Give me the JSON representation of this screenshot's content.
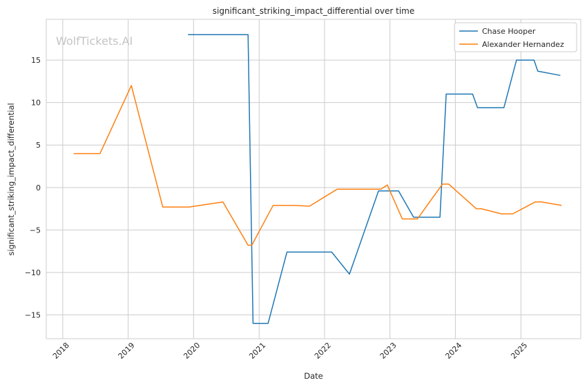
{
  "chart_data": {
    "type": "line",
    "title": "significant_striking_impact_differential over time",
    "xlabel": "Date",
    "ylabel": "significant_striking_impact_differential",
    "watermark": "WolfTickets.AI",
    "xlim": [
      "2017-10-01",
      "2025-12-01"
    ],
    "ylim": [
      -17.8,
      19.8
    ],
    "x_ticks": [
      "2018",
      "2019",
      "2020",
      "2021",
      "2022",
      "2023",
      "2024",
      "2025"
    ],
    "y_ticks": [
      15,
      10,
      5,
      0,
      -5,
      -10,
      -15
    ],
    "y_tick_labels": [
      "15",
      "10",
      "5",
      "0",
      "−5",
      "−10",
      "−15"
    ],
    "grid": true,
    "legend_position": "top-right",
    "series": [
      {
        "name": "Chase Hooper",
        "color": "#1f77b4",
        "points": [
          [
            "2019-12-01",
            18.0
          ],
          [
            "2020-10-31",
            18.0
          ],
          [
            "2020-11-28",
            -16.0
          ],
          [
            "2021-02-20",
            -16.0
          ],
          [
            "2021-06-05",
            -7.6
          ],
          [
            "2022-02-10",
            -7.6
          ],
          [
            "2022-05-20",
            -10.2
          ],
          [
            "2022-10-29",
            -0.4
          ],
          [
            "2023-02-18",
            -0.4
          ],
          [
            "2023-05-13",
            -3.5
          ],
          [
            "2023-10-07",
            -3.5
          ],
          [
            "2023-11-11",
            11.0
          ],
          [
            "2024-04-06",
            11.0
          ],
          [
            "2024-05-04",
            9.4
          ],
          [
            "2024-09-28",
            9.4
          ],
          [
            "2024-12-07",
            15.0
          ],
          [
            "2025-03-15",
            15.0
          ],
          [
            "2025-04-05",
            13.7
          ],
          [
            "2025-08-09",
            13.2
          ]
        ]
      },
      {
        "name": "Alexander Hernandez",
        "color": "#ff7f0e",
        "points": [
          [
            "2018-03-03",
            4.0
          ],
          [
            "2018-07-28",
            4.0
          ],
          [
            "2019-01-19",
            12.0
          ],
          [
            "2019-07-13",
            -2.3
          ],
          [
            "2019-12-07",
            -2.3
          ],
          [
            "2020-06-13",
            -1.7
          ],
          [
            "2020-10-31",
            -6.8
          ],
          [
            "2020-11-21",
            -6.8
          ],
          [
            "2021-03-20",
            -2.1
          ],
          [
            "2021-07-17",
            -2.1
          ],
          [
            "2021-10-09",
            -2.2
          ],
          [
            "2022-03-12",
            -0.2
          ],
          [
            "2022-11-12",
            -0.2
          ],
          [
            "2022-12-17",
            0.3
          ],
          [
            "2023-03-11",
            -3.7
          ],
          [
            "2023-06-03",
            -3.7
          ],
          [
            "2023-10-21",
            0.4
          ],
          [
            "2023-11-25",
            0.4
          ],
          [
            "2024-04-27",
            -2.5
          ],
          [
            "2024-05-25",
            -2.5
          ],
          [
            "2024-09-14",
            -3.1
          ],
          [
            "2024-11-16",
            -3.1
          ],
          [
            "2025-03-22",
            -1.7
          ],
          [
            "2025-04-26",
            -1.7
          ],
          [
            "2025-08-16",
            -2.1
          ]
        ]
      }
    ]
  }
}
